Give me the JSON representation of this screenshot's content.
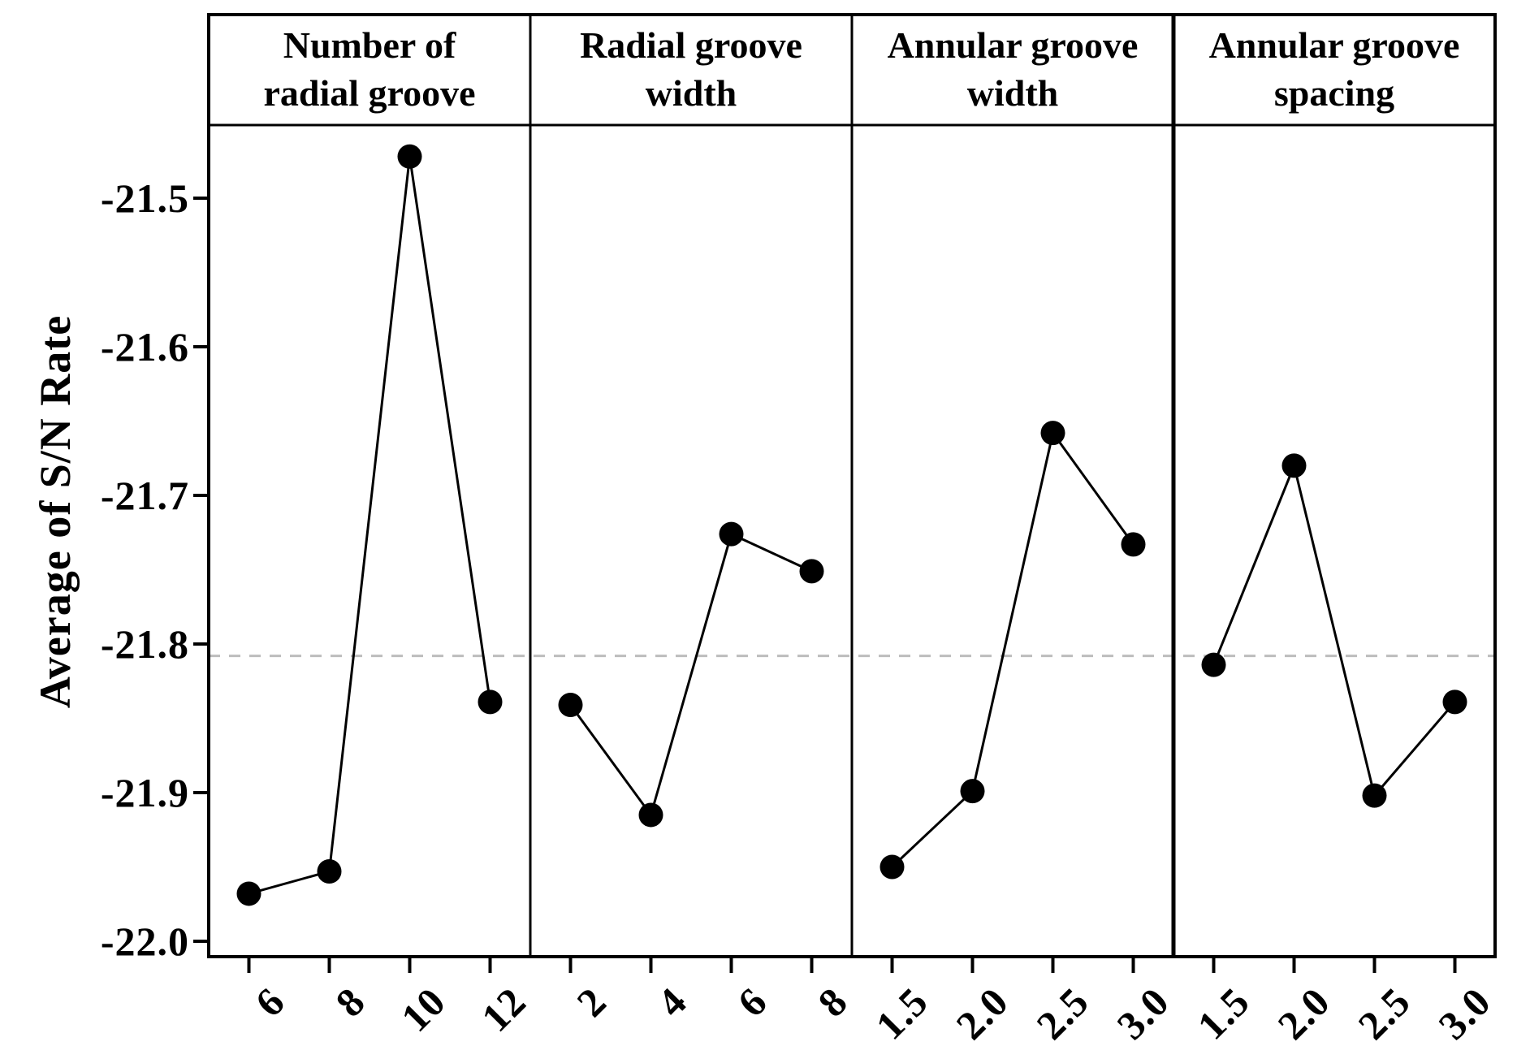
{
  "chart_data": {
    "type": "line",
    "ylabel": "Average of S/N Rate",
    "ylim": [
      -22.01,
      -21.44
    ],
    "yticks": [
      -21.5,
      -21.6,
      -21.7,
      -21.8,
      -21.9,
      -22.0
    ],
    "ytick_labels": [
      "-21.5",
      "-21.6",
      "-21.7",
      "-21.8",
      "-21.9",
      "-22.0"
    ],
    "reference_line": -21.808,
    "grid": false,
    "legend": "none",
    "marker_style": "filled-circle",
    "panels": [
      {
        "title": "Number of radial groove",
        "title_lines": [
          "Number of",
          "radial groove"
        ],
        "categories": [
          "6",
          "8",
          "10",
          "12"
        ],
        "values": [
          -21.968,
          -21.953,
          -21.472,
          -21.839
        ]
      },
      {
        "title": "Radial groove width",
        "title_lines": [
          "Radial groove",
          "width"
        ],
        "categories": [
          "2",
          "4",
          "6",
          "8"
        ],
        "values": [
          -21.841,
          -21.915,
          -21.726,
          -21.751
        ]
      },
      {
        "title": "Annular groove width",
        "title_lines": [
          "Annular groove",
          "width"
        ],
        "categories": [
          "1.5",
          "2.0",
          "2.5",
          "3.0"
        ],
        "values": [
          -21.95,
          -21.899,
          -21.658,
          -21.733
        ]
      },
      {
        "title": "Annular groove spacing",
        "title_lines": [
          "Annular groove",
          "spacing"
        ],
        "categories": [
          "1.5",
          "2.0",
          "2.5",
          "3.0"
        ],
        "values": [
          -21.814,
          -21.68,
          -21.902,
          -21.839
        ]
      }
    ],
    "colors": {
      "line": "#000000",
      "marker": "#000000",
      "frame": "#000000",
      "reference_line": "#bdbdbd",
      "background": "#ffffff",
      "text": "#000000"
    }
  }
}
